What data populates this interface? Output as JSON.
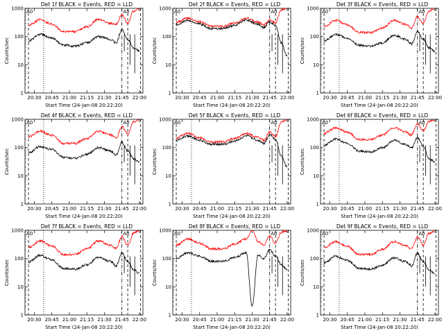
{
  "chart_data": [
    {
      "type": "line",
      "title": "Det 1f BLACK = Events, RED = LLD",
      "ylabel": "Counts/sec",
      "xlabel": "Start Time (24-Jan-08 20:22:20)",
      "x_ticks": [
        "20:30",
        "20:45",
        "21:00",
        "21:15",
        "21:30",
        "21:45",
        "22:00"
      ],
      "y_ticks": [
        "1",
        "10",
        "100",
        "1000"
      ],
      "ylim": [
        1,
        1000
      ],
      "x_range": [
        "20:22",
        "22:03"
      ],
      "yscale": "log",
      "attenuator_marker": "A0",
      "series": [
        {
          "color": "#ff0000",
          "x": [
            "20:25",
            "20:35",
            "20:45",
            "20:55",
            "21:05",
            "21:15",
            "21:25",
            "21:35",
            "21:40",
            "21:45",
            "21:50",
            "21:55",
            "22:00"
          ],
          "y": [
            250,
            400,
            280,
            150,
            150,
            220,
            420,
            300,
            260,
            600,
            300,
            800,
            1000
          ]
        },
        {
          "color": "#000000",
          "x": [
            "20:25",
            "20:35",
            "20:45",
            "20:55",
            "21:05",
            "21:15",
            "21:25",
            "21:35",
            "21:40",
            "21:45",
            "21:50",
            "21:55",
            "22:00"
          ],
          "y": [
            70,
            120,
            90,
            50,
            45,
            60,
            100,
            80,
            60,
            180,
            80,
            40,
            30
          ]
        }
      ]
    },
    {
      "type": "line",
      "title": "Det 2f BLACK = Events, RED = LLD",
      "ylabel": "Counts/sec",
      "xlabel": "Start Time (24-Jan-08 20:22:20)",
      "x_ticks": [
        "20:30",
        "20:45",
        "21:00",
        "21:15",
        "21:30",
        "21:45",
        "22:00"
      ],
      "y_ticks": [
        "1",
        "10",
        "100",
        "1000"
      ],
      "ylim": [
        1,
        1000
      ],
      "yscale": "log",
      "attenuator_marker": "A0",
      "series": [
        {
          "color": "#ff0000",
          "x": [
            "20:25",
            "20:35",
            "20:45",
            "20:55",
            "21:05",
            "21:15",
            "21:25",
            "21:35",
            "21:40",
            "21:45",
            "21:50",
            "21:55",
            "22:00"
          ],
          "y": [
            320,
            450,
            330,
            230,
            230,
            300,
            450,
            330,
            260,
            400,
            300,
            900,
            1000
          ]
        },
        {
          "color": "#000000",
          "x": [
            "20:25",
            "20:35",
            "20:45",
            "20:55",
            "21:05",
            "21:15",
            "21:25",
            "21:35",
            "21:40",
            "21:45",
            "21:50",
            "21:55",
            "22:00"
          ],
          "y": [
            260,
            380,
            280,
            190,
            190,
            250,
            380,
            270,
            210,
            330,
            250,
            60,
            20
          ]
        }
      ]
    },
    {
      "type": "line",
      "title": "Det 3f BLACK = Events, RED = LLD",
      "ylabel": "Counts/sec",
      "xlabel": "Start Time (24-Jan-08 20:22:20)",
      "x_ticks": [
        "20:30",
        "20:45",
        "21:00",
        "21:15",
        "21:30",
        "21:45",
        "22:00"
      ],
      "y_ticks": [
        "1",
        "10",
        "100",
        "1000"
      ],
      "ylim": [
        1,
        1000
      ],
      "yscale": "log",
      "attenuator_marker": "A0",
      "series": [
        {
          "color": "#ff0000",
          "x": [
            "20:25",
            "20:35",
            "20:45",
            "20:55",
            "21:05",
            "21:15",
            "21:25",
            "21:35",
            "21:40",
            "21:45",
            "21:50",
            "21:55",
            "22:00"
          ],
          "y": [
            230,
            380,
            260,
            140,
            140,
            200,
            380,
            270,
            200,
            500,
            300,
            800,
            1000
          ]
        },
        {
          "color": "#000000",
          "x": [
            "20:25",
            "20:35",
            "20:45",
            "20:55",
            "21:05",
            "21:15",
            "21:25",
            "21:35",
            "21:40",
            "21:45",
            "21:50",
            "21:55",
            "22:00"
          ],
          "y": [
            70,
            120,
            90,
            50,
            45,
            60,
            110,
            80,
            55,
            150,
            80,
            40,
            30
          ]
        }
      ]
    },
    {
      "type": "line",
      "title": "Det 4f BLACK = Events, RED = LLD",
      "ylabel": "Counts/sec",
      "xlabel": "Start Time (24-Jan-08 20:22:20)",
      "x_ticks": [
        "20:30",
        "20:45",
        "21:00",
        "21:15",
        "21:30",
        "21:45",
        "22:00"
      ],
      "y_ticks": [
        "1",
        "10",
        "100",
        "1000"
      ],
      "ylim": [
        1,
        1000
      ],
      "yscale": "log",
      "attenuator_marker": "A0",
      "series": [
        {
          "color": "#ff0000",
          "x": [
            "20:25",
            "20:35",
            "20:45",
            "20:55",
            "21:05",
            "21:15",
            "21:25",
            "21:35",
            "21:40",
            "21:45",
            "21:50",
            "21:55",
            "22:00"
          ],
          "y": [
            240,
            380,
            270,
            140,
            140,
            210,
            380,
            280,
            220,
            550,
            300,
            800,
            1000
          ]
        },
        {
          "color": "#000000",
          "x": [
            "20:25",
            "20:35",
            "20:45",
            "20:55",
            "21:05",
            "21:15",
            "21:25",
            "21:35",
            "21:40",
            "21:45",
            "21:50",
            "21:55",
            "22:00"
          ],
          "y": [
            65,
            110,
            85,
            45,
            42,
            58,
            100,
            75,
            55,
            150,
            75,
            40,
            30
          ]
        }
      ]
    },
    {
      "type": "line",
      "title": "Det 5f BLACK = Events, RED = LLD",
      "ylabel": "Counts/sec",
      "xlabel": "Start Time (24-Jan-08 20:22:20)",
      "x_ticks": [
        "20:30",
        "20:45",
        "21:00",
        "21:15",
        "21:30",
        "21:45",
        "22:00"
      ],
      "y_ticks": [
        "1",
        "10",
        "100",
        "1000"
      ],
      "ylim": [
        1,
        1000
      ],
      "yscale": "log",
      "attenuator_marker": "A0",
      "series": [
        {
          "color": "#ff0000",
          "x": [
            "20:25",
            "20:35",
            "20:45",
            "20:55",
            "21:05",
            "21:15",
            "21:25",
            "21:35",
            "21:40",
            "21:45",
            "21:50",
            "21:55",
            "22:00"
          ],
          "y": [
            220,
            330,
            220,
            160,
            160,
            210,
            320,
            230,
            180,
            350,
            250,
            800,
            1000
          ]
        },
        {
          "color": "#000000",
          "x": [
            "20:25",
            "20:35",
            "20:45",
            "20:55",
            "21:05",
            "21:15",
            "21:25",
            "21:35",
            "21:40",
            "21:45",
            "21:50",
            "21:55",
            "22:00"
          ],
          "y": [
            180,
            260,
            180,
            130,
            130,
            170,
            260,
            180,
            140,
            280,
            200,
            50,
            20
          ]
        }
      ]
    },
    {
      "type": "line",
      "title": "Det 6f BLACK = Events, RED = LLD",
      "ylabel": "Counts/sec",
      "xlabel": "Start Time (24-Jan-08 20:22:20)",
      "x_ticks": [
        "20:30",
        "20:45",
        "21:00",
        "21:15",
        "21:30",
        "21:45",
        "22:00"
      ],
      "y_ticks": [
        "1",
        "10",
        "100",
        "1000"
      ],
      "ylim": [
        1,
        1000
      ],
      "yscale": "log",
      "attenuator_marker": "A0",
      "series": [
        {
          "color": "#ff0000",
          "x": [
            "20:25",
            "20:35",
            "20:45",
            "20:55",
            "21:05",
            "21:15",
            "21:25",
            "21:35",
            "21:40",
            "21:45",
            "21:50",
            "21:55",
            "22:00"
          ],
          "y": [
            320,
            500,
            350,
            190,
            190,
            280,
            500,
            360,
            280,
            700,
            400,
            850,
            1000
          ]
        },
        {
          "color": "#000000",
          "x": [
            "20:25",
            "20:35",
            "20:45",
            "20:55",
            "21:05",
            "21:15",
            "21:25",
            "21:35",
            "21:40",
            "21:45",
            "21:50",
            "21:55",
            "22:00"
          ],
          "y": [
            120,
            200,
            140,
            75,
            70,
            100,
            180,
            130,
            95,
            220,
            110,
            40,
            30
          ]
        }
      ]
    },
    {
      "type": "line",
      "title": "Det 7f BLACK = Events, RED = LLD",
      "ylabel": "Counts/sec",
      "xlabel": "Start Time (24-Jan-08 20:22:20)",
      "x_ticks": [
        "20:30",
        "20:45",
        "21:00",
        "21:15",
        "21:30",
        "21:45",
        "22:00"
      ],
      "y_ticks": [
        "1",
        "10",
        "100",
        "1000"
      ],
      "ylim": [
        1,
        1000
      ],
      "yscale": "log",
      "attenuator_marker": "A0",
      "series": [
        {
          "color": "#ff0000",
          "x": [
            "20:25",
            "20:35",
            "20:45",
            "20:55",
            "21:05",
            "21:15",
            "21:25",
            "21:35",
            "21:40",
            "21:45",
            "21:50",
            "21:55",
            "22:00"
          ],
          "y": [
            250,
            420,
            280,
            140,
            140,
            220,
            420,
            300,
            230,
            600,
            300,
            800,
            1000
          ]
        },
        {
          "color": "#000000",
          "x": [
            "20:25",
            "20:35",
            "20:45",
            "20:55",
            "21:05",
            "21:15",
            "21:25",
            "21:35",
            "21:40",
            "21:45",
            "21:50",
            "21:55",
            "22:00"
          ],
          "y": [
            75,
            130,
            90,
            45,
            42,
            60,
            110,
            80,
            55,
            160,
            80,
            40,
            30
          ]
        }
      ]
    },
    {
      "type": "line",
      "title": "Det 8f BLACK = Events, RED = LLD",
      "ylabel": "Counts/sec",
      "xlabel": "Start Time (24-Jan-08 20:22:20)",
      "x_ticks": [
        "20:30",
        "20:45",
        "21:00",
        "21:15",
        "21:30",
        "21:45",
        "22:00"
      ],
      "y_ticks": [
        "1",
        "10",
        "100",
        "1000"
      ],
      "ylim": [
        1,
        1000
      ],
      "yscale": "log",
      "attenuator_marker": "A0",
      "series": [
        {
          "color": "#ff0000",
          "x": [
            "20:25",
            "20:35",
            "20:45",
            "20:55",
            "21:05",
            "21:15",
            "21:25",
            "21:30",
            "21:35",
            "21:40",
            "21:45",
            "21:50",
            "21:55",
            "22:00"
          ],
          "y": [
            300,
            500,
            350,
            220,
            220,
            330,
            500,
            1000,
            400,
            300,
            650,
            350,
            850,
            1000
          ]
        },
        {
          "color": "#000000",
          "x": [
            "20:25",
            "20:35",
            "20:45",
            "20:55",
            "21:05",
            "21:15",
            "21:25",
            "21:30",
            "21:35",
            "21:40",
            "21:45",
            "21:50",
            "21:55",
            "22:00"
          ],
          "y": [
            100,
            160,
            120,
            80,
            80,
            110,
            160,
            2,
            130,
            100,
            200,
            120,
            60,
            40
          ]
        }
      ]
    },
    {
      "type": "line",
      "title": "Det 9f BLACK = Events, RED = LLD",
      "ylabel": "Counts/sec",
      "xlabel": "Start Time (24-Jan-08 20:22:20)",
      "x_ticks": [
        "20:30",
        "20:45",
        "21:00",
        "21:15",
        "21:30",
        "21:45",
        "22:00"
      ],
      "y_ticks": [
        "1",
        "10",
        "100",
        "1000"
      ],
      "ylim": [
        1,
        1000
      ],
      "yscale": "log",
      "attenuator_marker": "A0",
      "series": [
        {
          "color": "#ff0000",
          "x": [
            "20:25",
            "20:35",
            "20:45",
            "20:55",
            "21:05",
            "21:15",
            "21:25",
            "21:35",
            "21:40",
            "21:45",
            "21:50",
            "21:55",
            "22:00"
          ],
          "y": [
            240,
            400,
            270,
            140,
            140,
            210,
            400,
            280,
            220,
            600,
            300,
            800,
            1000
          ]
        },
        {
          "color": "#000000",
          "x": [
            "20:25",
            "20:35",
            "20:45",
            "20:55",
            "21:05",
            "21:15",
            "21:25",
            "21:35",
            "21:40",
            "21:45",
            "21:50",
            "21:55",
            "22:00"
          ],
          "y": [
            70,
            120,
            85,
            45,
            42,
            58,
            105,
            78,
            55,
            150,
            78,
            40,
            30
          ]
        }
      ]
    }
  ]
}
